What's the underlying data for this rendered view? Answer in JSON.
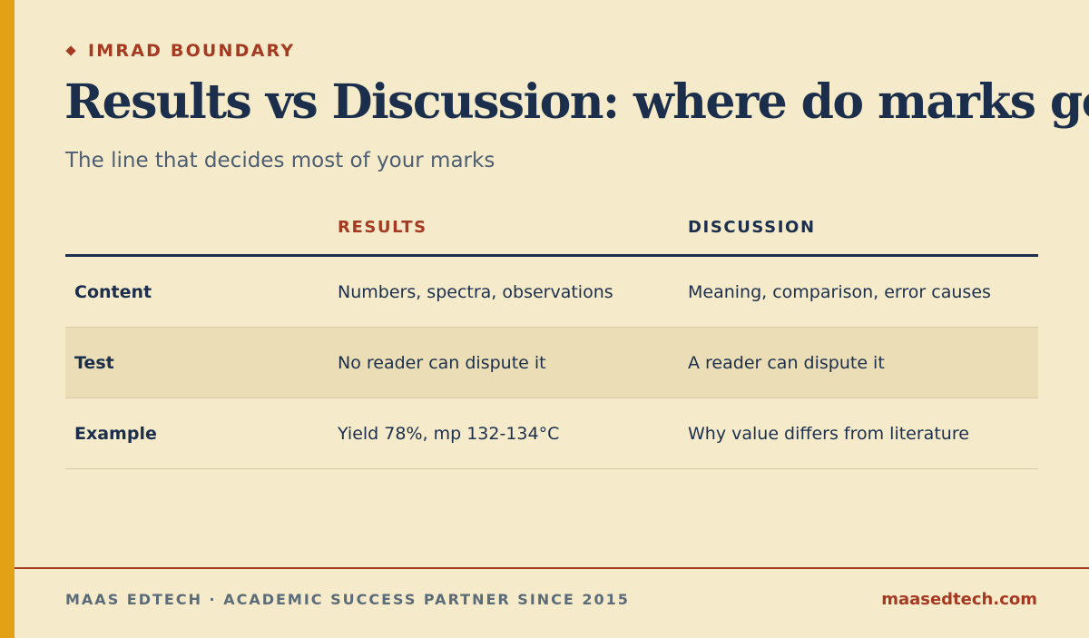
{
  "eyebrow": "IMRAD BOUNDARY",
  "title": "Results vs Discussion: where do marks go?",
  "subtitle": "The line that decides most of your marks",
  "table": {
    "headers": {
      "label": "",
      "results": "RESULTS",
      "discussion": "DISCUSSION"
    },
    "rows": [
      {
        "label": "Content",
        "results": "Numbers, spectra, observations",
        "discussion": "Meaning, comparison, error causes"
      },
      {
        "label": "Test",
        "results": "No reader can dispute it",
        "discussion": "A reader can dispute it"
      },
      {
        "label": "Example",
        "results": "Yield 78%, mp 132-134°C",
        "discussion": "Why value differs from literature"
      }
    ]
  },
  "footer": {
    "left": "MAAS EDTECH · ACADEMIC SUCCESS PARTNER SINCE 2015",
    "right": "maasedtech.com"
  },
  "colors": {
    "background": "#f5ebcb",
    "accent_bar": "#e3a215",
    "rust": "#a53a22",
    "navy": "#1b2f4c",
    "row_highlight": "#ebdeb6"
  }
}
